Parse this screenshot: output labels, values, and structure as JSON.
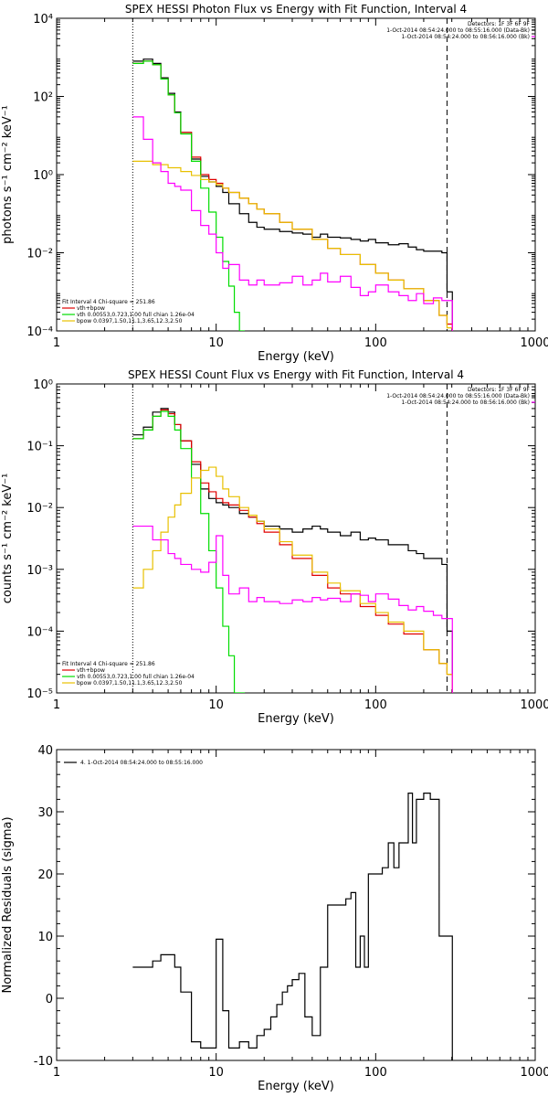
{
  "colors": {
    "data": "#000000",
    "total": "#e00000",
    "vth": "#00dd00",
    "bpow": "#e8c000",
    "background": "#ff00ff"
  },
  "chart_data": [
    {
      "type": "line",
      "title": "SPEX HESSI Photon Flux vs Energy with Fit Function, Interval 4",
      "xlabel": "Energy (keV)",
      "ylabel": "photons s⁻¹ cm⁻² keV⁻¹",
      "xscale": "log",
      "yscale": "log",
      "xlim": [
        1,
        1000
      ],
      "ylim": [
        0.0001,
        10000
      ],
      "x_ticks": [
        "1",
        "10",
        "100",
        "1000"
      ],
      "y_ticks": [
        "10⁻⁴",
        "10⁻²",
        "10⁰",
        "10²",
        "10⁴"
      ],
      "legend_top_right": {
        "header": "Detectors: 1F 3F 6F 9F",
        "entries": [
          "1-Oct-2014 08:54:24.000 to 08:55:16.000 (Data-Bk)",
          "1-Oct-2014 08:54:24.000 to 08:56:16.000 (Bk)"
        ]
      },
      "legend_bottom_left": {
        "header": "Fit Interval  4   Chi-square = 251.86",
        "entries": [
          "vth+bpow",
          "vth 0.00553,0.723,1.00  full chian 1.26e-04",
          "bpow 0.0397,1.50,11.1,3.65,12.3,2.50"
        ]
      },
      "vlines": [
        3,
        280
      ],
      "series": [
        {
          "name": "Data-Bk",
          "color": "data",
          "x": [
            3,
            3.5,
            4,
            4.5,
            5,
            5.5,
            6,
            7,
            8,
            9,
            10,
            11,
            12,
            14,
            16,
            18,
            20,
            25,
            30,
            35,
            40,
            45,
            50,
            60,
            70,
            80,
            90,
            100,
            120,
            140,
            160,
            180,
            200,
            230,
            260,
            280
          ],
          "y": [
            800,
            900,
            700,
            300,
            120,
            40,
            12,
            2.5,
            0.9,
            0.65,
            0.5,
            0.35,
            0.18,
            0.1,
            0.06,
            0.045,
            0.04,
            0.035,
            0.032,
            0.03,
            0.025,
            0.03,
            0.025,
            0.024,
            0.022,
            0.02,
            0.022,
            0.018,
            0.016,
            0.017,
            0.014,
            0.012,
            0.011,
            0.011,
            0.01,
            0.001
          ]
        },
        {
          "name": "vth+bpow",
          "color": "total",
          "x": [
            3,
            3.5,
            4,
            4.5,
            5,
            5.5,
            6,
            7,
            8,
            9,
            10,
            11,
            12,
            14,
            16,
            18,
            20,
            25,
            30,
            40,
            50,
            60,
            80,
            100,
            120,
            150,
            200,
            250,
            280
          ],
          "y": [
            700,
            800,
            650,
            280,
            110,
            38,
            12,
            2.8,
            1.0,
            0.75,
            0.6,
            0.45,
            0.35,
            0.25,
            0.18,
            0.13,
            0.1,
            0.06,
            0.04,
            0.022,
            0.013,
            0.009,
            0.005,
            0.003,
            0.002,
            0.0012,
            0.0006,
            0.00025,
            0.00015
          ]
        },
        {
          "name": "vth",
          "color": "vth",
          "x": [
            3,
            3.5,
            4,
            4.5,
            5,
            5.5,
            6,
            7,
            8,
            9,
            10,
            11,
            12,
            13,
            14
          ],
          "y": [
            700,
            800,
            650,
            280,
            110,
            38,
            11,
            2.2,
            0.45,
            0.11,
            0.025,
            0.006,
            0.0014,
            0.0003,
            0.0001
          ]
        },
        {
          "name": "bpow",
          "color": "bpow",
          "x": [
            3,
            4,
            5,
            6,
            7,
            8,
            9,
            10,
            11,
            12,
            14,
            16,
            18,
            20,
            25,
            30,
            40,
            50,
            60,
            80,
            100,
            120,
            150,
            200,
            250,
            280
          ],
          "y": [
            2.2,
            1.8,
            1.5,
            1.2,
            0.95,
            0.75,
            0.65,
            0.55,
            0.45,
            0.35,
            0.25,
            0.18,
            0.13,
            0.1,
            0.06,
            0.04,
            0.022,
            0.013,
            0.009,
            0.005,
            0.003,
            0.002,
            0.0012,
            0.0006,
            0.00025,
            0.00012
          ]
        },
        {
          "name": "Bk",
          "color": "background",
          "x": [
            3,
            3.5,
            4,
            4.5,
            5,
            5.5,
            6,
            7,
            8,
            9,
            10,
            11,
            12,
            14,
            16,
            18,
            20,
            25,
            30,
            35,
            40,
            45,
            50,
            60,
            70,
            80,
            90,
            100,
            120,
            140,
            160,
            180,
            200,
            230,
            260,
            280
          ],
          "y": [
            30,
            8,
            2,
            1.2,
            0.6,
            0.5,
            0.4,
            0.12,
            0.05,
            0.03,
            0.01,
            0.004,
            0.005,
            0.002,
            0.0015,
            0.002,
            0.0015,
            0.0017,
            0.0025,
            0.0015,
            0.002,
            0.003,
            0.0018,
            0.0025,
            0.0013,
            0.0008,
            0.001,
            0.0015,
            0.001,
            0.0008,
            0.0006,
            0.0009,
            0.0005,
            0.0007,
            0.0006,
            0.0006
          ]
        }
      ]
    },
    {
      "type": "line",
      "title": "SPEX HESSI Count Flux vs Energy with Fit Function, Interval 4",
      "xlabel": "Energy (keV)",
      "ylabel": "counts s⁻¹ cm⁻² keV⁻¹",
      "xscale": "log",
      "yscale": "log",
      "xlim": [
        1,
        1000
      ],
      "ylim": [
        1e-05,
        1
      ],
      "x_ticks": [
        "1",
        "10",
        "100",
        "1000"
      ],
      "y_ticks": [
        "10⁻⁵",
        "10⁻⁴",
        "10⁻³",
        "10⁻²",
        "10⁻¹",
        "10⁰"
      ],
      "legend_top_right": {
        "header": "Detectors: 1F 3F 6F 9F",
        "entries": [
          "1-Oct-2014 08:54:24.000 to 08:55:16.000 (Data-Bk)",
          "1-Oct-2014 08:54:24.000 to 08:56:16.000 (Bk)"
        ]
      },
      "legend_bottom_left": {
        "header": "Fit Interval  4   Chi-square = 251.86",
        "entries": [
          "vth+bpow",
          "vth 0.00553,0.723,1.00  full chian 1.26e-04",
          "bpow 0.0397,1.50,11.1,3.65,12.3,2.50"
        ]
      },
      "vlines": [
        3,
        280
      ],
      "series": [
        {
          "name": "Data-Bk",
          "color": "data",
          "x": [
            3,
            3.5,
            4,
            4.5,
            5,
            5.5,
            6,
            7,
            8,
            9,
            10,
            11,
            12,
            14,
            16,
            18,
            20,
            25,
            30,
            35,
            40,
            45,
            50,
            60,
            70,
            80,
            90,
            100,
            120,
            140,
            160,
            180,
            200,
            230,
            260,
            280
          ],
          "y": [
            0.15,
            0.2,
            0.35,
            0.4,
            0.35,
            0.22,
            0.12,
            0.05,
            0.02,
            0.014,
            0.012,
            0.011,
            0.01,
            0.008,
            0.007,
            0.006,
            0.005,
            0.0045,
            0.004,
            0.0045,
            0.005,
            0.0045,
            0.004,
            0.0035,
            0.004,
            0.003,
            0.0032,
            0.003,
            0.0025,
            0.0025,
            0.002,
            0.0018,
            0.0015,
            0.0015,
            0.0012,
            0.0001
          ]
        },
        {
          "name": "vth+bpow",
          "color": "total",
          "x": [
            3,
            3.5,
            4,
            4.5,
            5,
            5.5,
            6,
            7,
            8,
            9,
            10,
            11,
            12,
            14,
            16,
            18,
            20,
            25,
            30,
            40,
            50,
            60,
            80,
            100,
            120,
            150,
            200,
            250,
            280
          ],
          "y": [
            0.13,
            0.18,
            0.3,
            0.38,
            0.33,
            0.22,
            0.12,
            0.055,
            0.025,
            0.018,
            0.014,
            0.012,
            0.011,
            0.009,
            0.007,
            0.0055,
            0.004,
            0.0025,
            0.0015,
            0.0008,
            0.0005,
            0.0004,
            0.00025,
            0.00018,
            0.00013,
            9e-05,
            5e-05,
            3e-05,
            2e-05
          ]
        },
        {
          "name": "vth",
          "color": "vth",
          "x": [
            3,
            3.5,
            4,
            4.5,
            5,
            5.5,
            6,
            7,
            8,
            9,
            10,
            11,
            12,
            13,
            14
          ],
          "y": [
            0.13,
            0.18,
            0.3,
            0.36,
            0.3,
            0.18,
            0.09,
            0.03,
            0.008,
            0.002,
            0.0005,
            0.00012,
            4e-05,
            1e-05,
            1e-05
          ]
        },
        {
          "name": "bpow",
          "color": "bpow",
          "x": [
            3,
            3.5,
            4,
            4.5,
            5,
            5.5,
            6,
            7,
            8,
            9,
            10,
            11,
            12,
            14,
            16,
            18,
            20,
            25,
            30,
            40,
            50,
            60,
            80,
            100,
            120,
            150,
            200,
            250,
            280
          ],
          "y": [
            0.0005,
            0.001,
            0.002,
            0.004,
            0.007,
            0.011,
            0.017,
            0.03,
            0.04,
            0.045,
            0.032,
            0.02,
            0.015,
            0.01,
            0.0075,
            0.006,
            0.0045,
            0.0028,
            0.0017,
            0.0009,
            0.0006,
            0.00045,
            0.00028,
            0.0002,
            0.00014,
            0.0001,
            5e-05,
            3e-05,
            2e-05
          ]
        },
        {
          "name": "Bk",
          "color": "background",
          "x": [
            3,
            3.5,
            4,
            4.5,
            5,
            5.5,
            6,
            7,
            8,
            9,
            10,
            11,
            12,
            14,
            16,
            18,
            20,
            25,
            30,
            35,
            40,
            45,
            50,
            60,
            70,
            80,
            90,
            100,
            120,
            140,
            160,
            180,
            200,
            230,
            260,
            280
          ],
          "y": [
            0.005,
            0.005,
            0.003,
            0.003,
            0.0018,
            0.0015,
            0.0012,
            0.001,
            0.0009,
            0.0013,
            0.0035,
            0.0008,
            0.0004,
            0.0005,
            0.0003,
            0.00035,
            0.0003,
            0.00028,
            0.00032,
            0.0003,
            0.00035,
            0.00032,
            0.00034,
            0.0003,
            0.0004,
            0.00038,
            0.0003,
            0.0004,
            0.00033,
            0.00026,
            0.00022,
            0.00025,
            0.00021,
            0.00018,
            0.00016,
            0.00016
          ]
        }
      ]
    },
    {
      "type": "line",
      "title": "",
      "xlabel": "Energy (keV)",
      "ylabel": "Normalized Residuals (sigma)",
      "xscale": "log",
      "yscale": "linear",
      "xlim": [
        1,
        1000
      ],
      "ylim": [
        -10,
        40
      ],
      "x_ticks": [
        "1",
        "10",
        "100",
        "1000"
      ],
      "y_ticks": [
        "-10",
        "0",
        "10",
        "20",
        "30",
        "40"
      ],
      "legend_top_left": {
        "entries": [
          "4.  1-Oct-2014 08:54:24.000 to 08:55:16.000"
        ]
      },
      "series": [
        {
          "name": "4.  1-Oct-2014 08:54:24.000 to 08:55:16.000",
          "color": "data",
          "x": [
            3,
            3.5,
            4,
            4.5,
            5,
            5.5,
            6,
            7,
            8,
            9,
            10,
            11,
            12,
            13,
            14,
            16,
            18,
            20,
            22,
            24,
            26,
            28,
            30,
            33,
            36,
            40,
            45,
            50,
            55,
            60,
            65,
            70,
            75,
            80,
            85,
            90,
            95,
            100,
            110,
            120,
            130,
            140,
            150,
            160,
            170,
            180,
            200,
            220,
            250,
            280
          ],
          "y": [
            5,
            5,
            6,
            7,
            7,
            5,
            1,
            -7,
            -8,
            -8,
            9.5,
            -2,
            -8,
            -8,
            -7,
            -8,
            -6,
            -5,
            -3,
            -1,
            1,
            2,
            3,
            4,
            -3,
            -6,
            5,
            15,
            15,
            15,
            16,
            17,
            5,
            10,
            5,
            20,
            20,
            20,
            21,
            25,
            21,
            25,
            25,
            33,
            25,
            32,
            33,
            32,
            10,
            10
          ]
        }
      ]
    }
  ]
}
